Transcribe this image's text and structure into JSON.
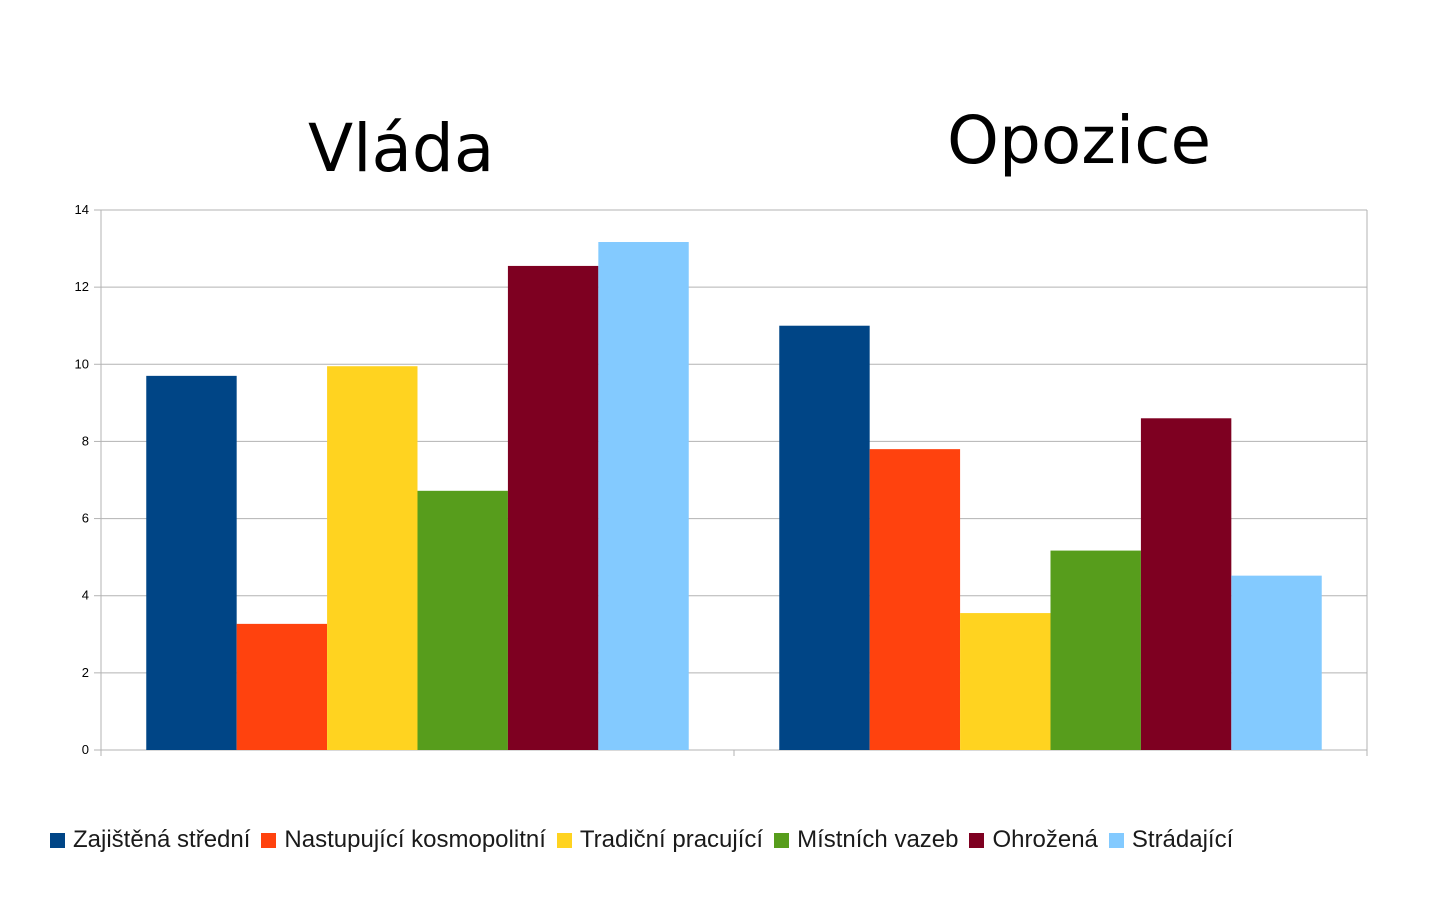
{
  "chart_data": {
    "type": "bar",
    "categories": [
      "Vláda",
      "Opozice"
    ],
    "series": [
      {
        "name": "Zajištěná střední",
        "color": "#004586",
        "values": [
          9.7,
          11.0
        ]
      },
      {
        "name": "Nastupující kosmopolitní",
        "color": "#ff420e",
        "values": [
          3.27,
          7.8
        ]
      },
      {
        "name": "Tradiční pracující",
        "color": "#ffd320",
        "values": [
          9.95,
          3.55
        ]
      },
      {
        "name": "Místních vazeb",
        "color": "#579d1c",
        "values": [
          6.72,
          5.17
        ]
      },
      {
        "name": "Ohrožená",
        "color": "#7e0021",
        "values": [
          12.55,
          8.6
        ]
      },
      {
        "name": "Strádající",
        "color": "#83caff",
        "values": [
          13.17,
          4.52
        ]
      }
    ],
    "yticks": [
      "0",
      "2",
      "4",
      "6",
      "8",
      "10",
      "12",
      "14"
    ],
    "ylim": [
      0,
      14
    ],
    "grid": true,
    "legend_position": "bottom"
  }
}
